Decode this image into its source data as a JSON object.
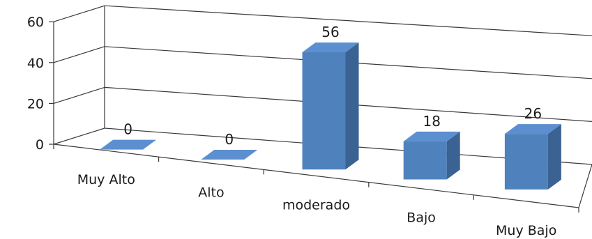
{
  "chart_data": {
    "type": "bar",
    "categories": [
      "Muy Alto",
      "Alto",
      "moderado",
      "Bajo",
      "Muy Bajo"
    ],
    "values": [
      0,
      0,
      56,
      18,
      26
    ],
    "data_labels": [
      "0",
      "0",
      "56",
      "18",
      "26"
    ],
    "ylim": [
      0,
      60
    ],
    "yticks": [
      0,
      20,
      40,
      60
    ],
    "ytick_labels": [
      "0",
      "20",
      "40",
      "60"
    ],
    "grid": true,
    "legend": "none",
    "style": "3d",
    "bar_color": "#4f81bd"
  }
}
